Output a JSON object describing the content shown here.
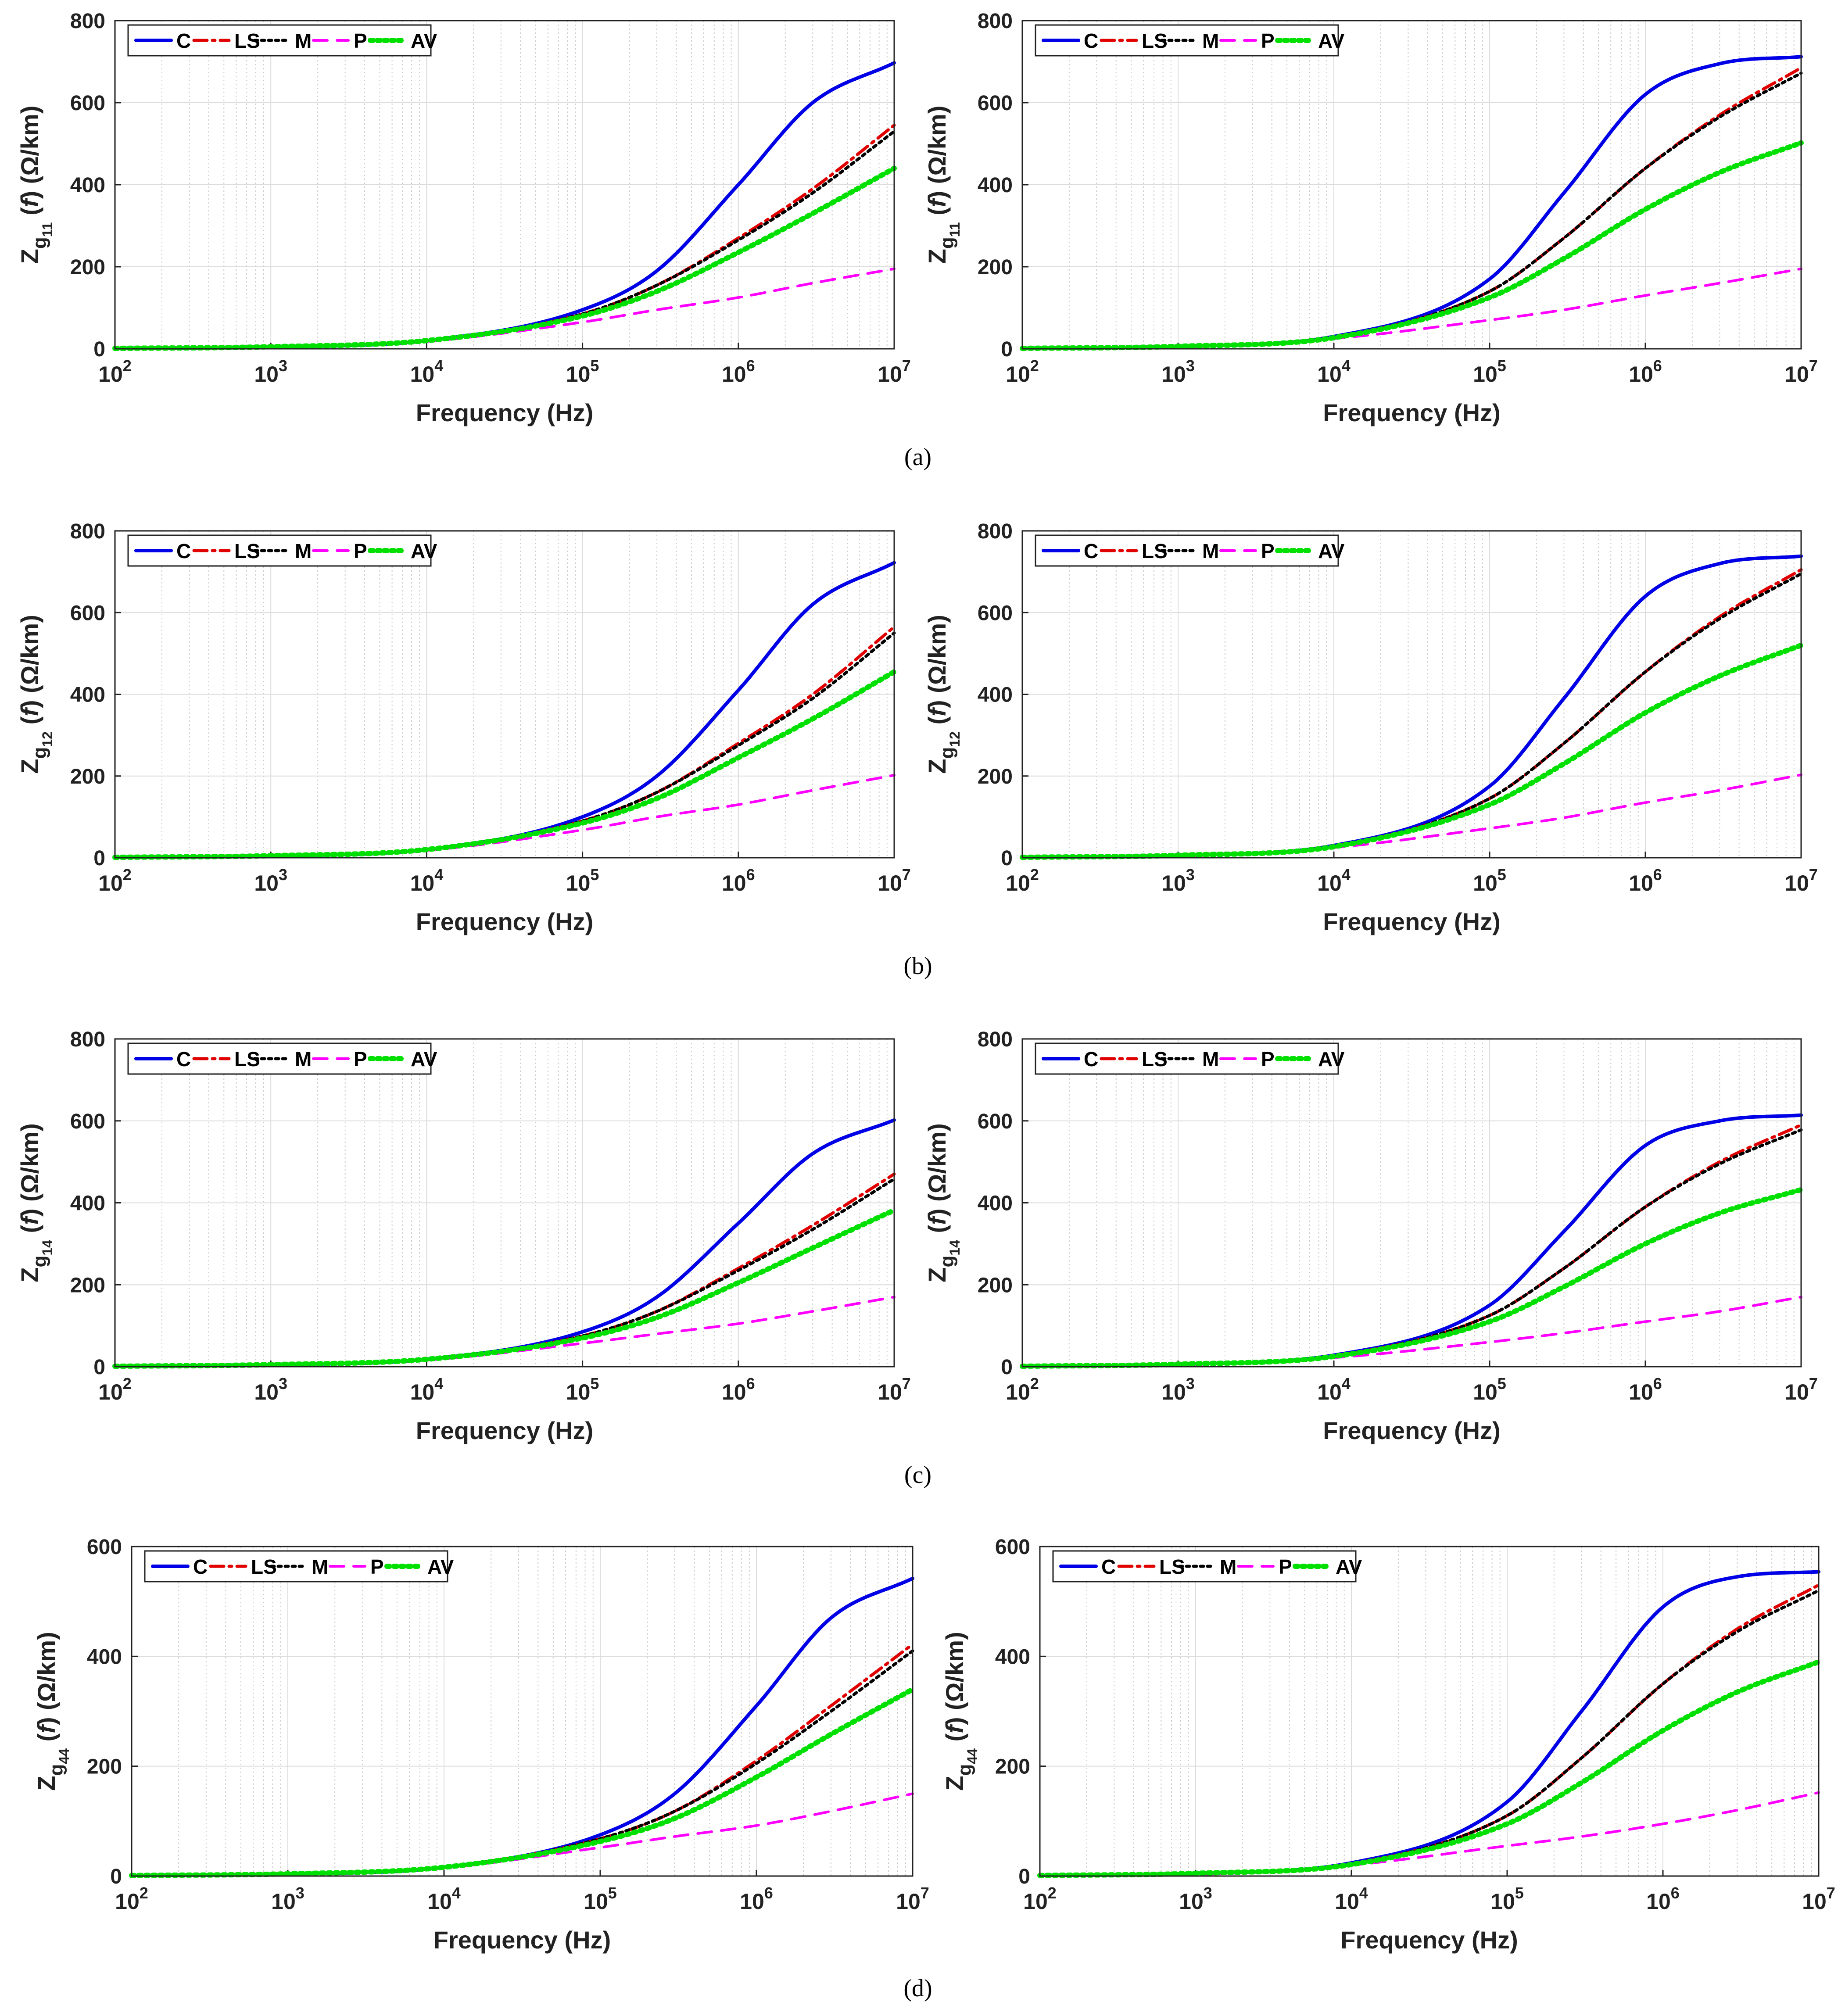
{
  "figure": {
    "captions": [
      "(a)",
      "(b)",
      "(c)",
      "(d)"
    ]
  },
  "colors": {
    "C": "#0000e6",
    "LS": "#e00000",
    "M": "#000000",
    "P": "#ff00ff",
    "AV": "#00e000"
  },
  "chart_data": [
    {
      "id": "a-left",
      "type": "line",
      "row": "(a)",
      "panel": "left",
      "xlabel": "Frequency (Hz)",
      "ylabel_main": "Z",
      "ylabel_sub1": "g",
      "ylabel_sub2": "11",
      "ylabel_rest": "(f) (Ω/km)",
      "xscale": "log",
      "xlim": [
        100,
        10000000
      ],
      "ylim": [
        0,
        800
      ],
      "xticks": [
        "10^2",
        "10^3",
        "10^4",
        "10^5",
        "10^6",
        "10^7"
      ],
      "yticks": [
        "0",
        "200",
        "400",
        "600",
        "800"
      ],
      "grid": true,
      "legend": [
        "C",
        "LS",
        "M",
        "P",
        "AV"
      ],
      "legend_location": "top-left",
      "x": [
        100,
        1000,
        10000,
        100000,
        300000,
        1000000,
        3000000,
        10000000
      ],
      "series": [
        {
          "name": "C",
          "values": [
            1,
            5,
            20,
            95,
            190,
            400,
            600,
            697
          ]
        },
        {
          "name": "LS",
          "values": [
            1,
            5,
            20,
            85,
            155,
            270,
            390,
            545
          ]
        },
        {
          "name": "M",
          "values": [
            1,
            5,
            20,
            85,
            155,
            265,
            380,
            530
          ]
        },
        {
          "name": "P",
          "values": [
            1,
            4,
            18,
            65,
            95,
            125,
            160,
            195
          ]
        },
        {
          "name": "AV",
          "values": [
            1,
            5,
            20,
            80,
            140,
            235,
            330,
            440
          ]
        }
      ]
    },
    {
      "id": "a-right",
      "type": "line",
      "row": "(a)",
      "panel": "right",
      "xlabel": "Frequency (Hz)",
      "ylabel_main": "Z",
      "ylabel_sub1": "g",
      "ylabel_sub2": "11",
      "ylabel_rest": "(f) (Ω/km)",
      "xscale": "log",
      "xlim": [
        100,
        10000000
      ],
      "ylim": [
        0,
        800
      ],
      "xticks": [
        "10^2",
        "10^3",
        "10^4",
        "10^5",
        "10^6",
        "10^7"
      ],
      "yticks": [
        "0",
        "200",
        "400",
        "600",
        "800"
      ],
      "grid": true,
      "legend": [
        "C",
        "LS",
        "M",
        "P",
        "AV"
      ],
      "legend_location": "top-left",
      "x": [
        100,
        1000,
        10000,
        100000,
        300000,
        1000000,
        3000000,
        10000000
      ],
      "series": [
        {
          "name": "C",
          "values": [
            1,
            6,
            30,
            170,
            380,
            620,
            695,
            712
          ]
        },
        {
          "name": "LS",
          "values": [
            1,
            6,
            28,
            140,
            270,
            440,
            570,
            685
          ]
        },
        {
          "name": "M",
          "values": [
            1,
            6,
            28,
            140,
            270,
            440,
            565,
            672
          ]
        },
        {
          "name": "P",
          "values": [
            1,
            4,
            25,
            70,
            95,
            130,
            160,
            195
          ]
        },
        {
          "name": "AV",
          "values": [
            1,
            6,
            27,
            125,
            220,
            340,
            430,
            502
          ]
        }
      ]
    },
    {
      "id": "b-left",
      "type": "line",
      "row": "(b)",
      "panel": "left",
      "xlabel": "Frequency (Hz)",
      "ylabel_main": "Z",
      "ylabel_sub1": "g",
      "ylabel_sub2": "12",
      "ylabel_rest": "(f) (Ω/km)",
      "xscale": "log",
      "xlim": [
        100,
        10000000
      ],
      "ylim": [
        0,
        800
      ],
      "xticks": [
        "10^2",
        "10^3",
        "10^4",
        "10^5",
        "10^6",
        "10^7"
      ],
      "yticks": [
        "0",
        "200",
        "400",
        "600",
        "800"
      ],
      "grid": true,
      "legend": [
        "C",
        "LS",
        "M",
        "P",
        "AV"
      ],
      "legend_location": "top-left",
      "x": [
        100,
        1000,
        10000,
        100000,
        300000,
        1000000,
        3000000,
        10000000
      ],
      "series": [
        {
          "name": "C",
          "values": [
            1,
            5,
            20,
            100,
            200,
            410,
            620,
            722
          ]
        },
        {
          "name": "LS",
          "values": [
            1,
            5,
            20,
            90,
            160,
            280,
            400,
            565
          ]
        },
        {
          "name": "M",
          "values": [
            1,
            5,
            20,
            90,
            160,
            275,
            390,
            550
          ]
        },
        {
          "name": "P",
          "values": [
            1,
            4,
            18,
            68,
            100,
            130,
            165,
            202
          ]
        },
        {
          "name": "AV",
          "values": [
            1,
            5,
            20,
            85,
            145,
            245,
            340,
            455
          ]
        }
      ]
    },
    {
      "id": "b-right",
      "type": "line",
      "row": "(b)",
      "panel": "right",
      "xlabel": "Frequency (Hz)",
      "ylabel_main": "Z",
      "ylabel_sub1": "g",
      "ylabel_sub2": "12",
      "ylabel_rest": "(f) (Ω/km)",
      "xscale": "log",
      "xlim": [
        100,
        10000000
      ],
      "ylim": [
        0,
        800
      ],
      "xticks": [
        "10^2",
        "10^3",
        "10^4",
        "10^5",
        "10^6",
        "10^7"
      ],
      "yticks": [
        "0",
        "200",
        "400",
        "600",
        "800"
      ],
      "grid": true,
      "legend": [
        "C",
        "LS",
        "M",
        "P",
        "AV"
      ],
      "legend_location": "top-left",
      "x": [
        100,
        1000,
        10000,
        100000,
        300000,
        1000000,
        3000000,
        10000000
      ],
      "series": [
        {
          "name": "C",
          "values": [
            1,
            6,
            30,
            175,
            390,
            640,
            720,
            738
          ]
        },
        {
          "name": "LS",
          "values": [
            1,
            6,
            28,
            145,
            280,
            455,
            590,
            705
          ]
        },
        {
          "name": "M",
          "values": [
            1,
            6,
            28,
            145,
            280,
            455,
            585,
            695
          ]
        },
        {
          "name": "P",
          "values": [
            1,
            4,
            25,
            72,
            98,
            135,
            165,
            203
          ]
        },
        {
          "name": "AV",
          "values": [
            1,
            6,
            27,
            130,
            230,
            355,
            445,
            520
          ]
        }
      ]
    },
    {
      "id": "c-left",
      "type": "line",
      "row": "(c)",
      "panel": "left",
      "xlabel": "Frequency (Hz)",
      "ylabel_main": "Z",
      "ylabel_sub1": "g",
      "ylabel_sub2": "14",
      "ylabel_rest": "(f) (Ω/km)",
      "xscale": "log",
      "xlim": [
        100,
        10000000
      ],
      "ylim": [
        0,
        800
      ],
      "xticks": [
        "10^2",
        "10^3",
        "10^4",
        "10^5",
        "10^6",
        "10^7"
      ],
      "yticks": [
        "0",
        "200",
        "400",
        "600",
        "800"
      ],
      "grid": true,
      "legend": [
        "C",
        "LS",
        "M",
        "P",
        "AV"
      ],
      "legend_location": "top-left",
      "x": [
        100,
        1000,
        10000,
        100000,
        300000,
        1000000,
        3000000,
        10000000
      ],
      "series": [
        {
          "name": "C",
          "values": [
            1,
            5,
            18,
            85,
            170,
            350,
            520,
            602
          ]
        },
        {
          "name": "LS",
          "values": [
            1,
            5,
            18,
            75,
            135,
            240,
            345,
            470
          ]
        },
        {
          "name": "M",
          "values": [
            1,
            5,
            18,
            75,
            135,
            235,
            335,
            458
          ]
        },
        {
          "name": "P",
          "values": [
            1,
            4,
            16,
            57,
            80,
            105,
            135,
            170
          ]
        },
        {
          "name": "AV",
          "values": [
            1,
            5,
            18,
            70,
            120,
            205,
            290,
            382
          ]
        }
      ]
    },
    {
      "id": "c-right",
      "type": "line",
      "row": "(c)",
      "panel": "right",
      "xlabel": "Frequency (Hz)",
      "ylabel_main": "Z",
      "ylabel_sub1": "g",
      "ylabel_sub2": "14",
      "ylabel_rest": "(f) (Ω/km)",
      "xscale": "log",
      "xlim": [
        100,
        10000000
      ],
      "ylim": [
        0,
        800
      ],
      "xticks": [
        "10^2",
        "10^3",
        "10^4",
        "10^5",
        "10^6",
        "10^7"
      ],
      "yticks": [
        "0",
        "200",
        "400",
        "600",
        "800"
      ],
      "grid": true,
      "legend": [
        "C",
        "LS",
        "M",
        "P",
        "AV"
      ],
      "legend_location": "top-left",
      "x": [
        100,
        1000,
        10000,
        100000,
        300000,
        1000000,
        3000000,
        10000000
      ],
      "series": [
        {
          "name": "C",
          "values": [
            1,
            6,
            28,
            150,
            330,
            540,
            600,
            614
          ]
        },
        {
          "name": "LS",
          "values": [
            1,
            6,
            26,
            125,
            240,
            390,
            500,
            590
          ]
        },
        {
          "name": "M",
          "values": [
            1,
            6,
            26,
            125,
            240,
            390,
            495,
            578
          ]
        },
        {
          "name": "P",
          "values": [
            1,
            4,
            22,
            60,
            82,
            110,
            135,
            170
          ]
        },
        {
          "name": "AV",
          "values": [
            1,
            6,
            25,
            110,
            195,
            300,
            375,
            432
          ]
        }
      ]
    },
    {
      "id": "d-left",
      "type": "line",
      "row": "(d)",
      "panel": "left",
      "xlabel": "Frequency (Hz)",
      "ylabel_main": "Z",
      "ylabel_sub1": "g",
      "ylabel_sub2": "44",
      "ylabel_rest": "(f) (Ω/km)",
      "xscale": "log",
      "xlim": [
        100,
        10000000
      ],
      "ylim": [
        0,
        600
      ],
      "xticks": [
        "10^2",
        "10^3",
        "10^4",
        "10^5",
        "10^6",
        "10^7"
      ],
      "yticks": [
        "0",
        "200",
        "400",
        "600"
      ],
      "grid": true,
      "legend": [
        "C",
        "LS",
        "M",
        "P",
        "AV"
      ],
      "legend_location": "top-left",
      "x": [
        100,
        1000,
        10000,
        100000,
        300000,
        1000000,
        3000000,
        10000000
      ],
      "series": [
        {
          "name": "C",
          "values": [
            1,
            4,
            16,
            75,
            150,
            310,
            470,
            542
          ]
        },
        {
          "name": "LS",
          "values": [
            1,
            4,
            16,
            68,
            118,
            210,
            310,
            422
          ]
        },
        {
          "name": "M",
          "values": [
            1,
            4,
            16,
            68,
            118,
            205,
            300,
            410
          ]
        },
        {
          "name": "P",
          "values": [
            1,
            3,
            15,
            52,
            72,
            92,
            118,
            150
          ]
        },
        {
          "name": "AV",
          "values": [
            1,
            4,
            16,
            63,
            105,
            180,
            258,
            340
          ]
        }
      ]
    },
    {
      "id": "d-right",
      "type": "line",
      "row": "(d)",
      "panel": "right",
      "xlabel": "Frequency (Hz)",
      "ylabel_main": "Z",
      "ylabel_sub1": "g",
      "ylabel_sub2": "44",
      "ylabel_rest": "(f) (Ω/km)",
      "xscale": "log",
      "xlim": [
        100,
        10000000
      ],
      "ylim": [
        0,
        600
      ],
      "xticks": [
        "10^2",
        "10^3",
        "10^4",
        "10^5",
        "10^6",
        "10^7"
      ],
      "yticks": [
        "0",
        "200",
        "400",
        "600"
      ],
      "grid": true,
      "legend": [
        "C",
        "LS",
        "M",
        "P",
        "AV"
      ],
      "legend_location": "top-left",
      "x": [
        100,
        1000,
        10000,
        100000,
        300000,
        1000000,
        3000000,
        10000000
      ],
      "series": [
        {
          "name": "C",
          "values": [
            1,
            5,
            24,
            135,
            300,
            490,
            545,
            554
          ]
        },
        {
          "name": "LS",
          "values": [
            1,
            5,
            22,
            110,
            215,
            350,
            450,
            530
          ]
        },
        {
          "name": "M",
          "values": [
            1,
            5,
            22,
            110,
            215,
            350,
            445,
            520
          ]
        },
        {
          "name": "P",
          "values": [
            1,
            3,
            20,
            55,
            72,
            95,
            120,
            152
          ]
        },
        {
          "name": "AV",
          "values": [
            1,
            5,
            21,
            95,
            170,
            265,
            335,
            390
          ]
        }
      ]
    }
  ]
}
